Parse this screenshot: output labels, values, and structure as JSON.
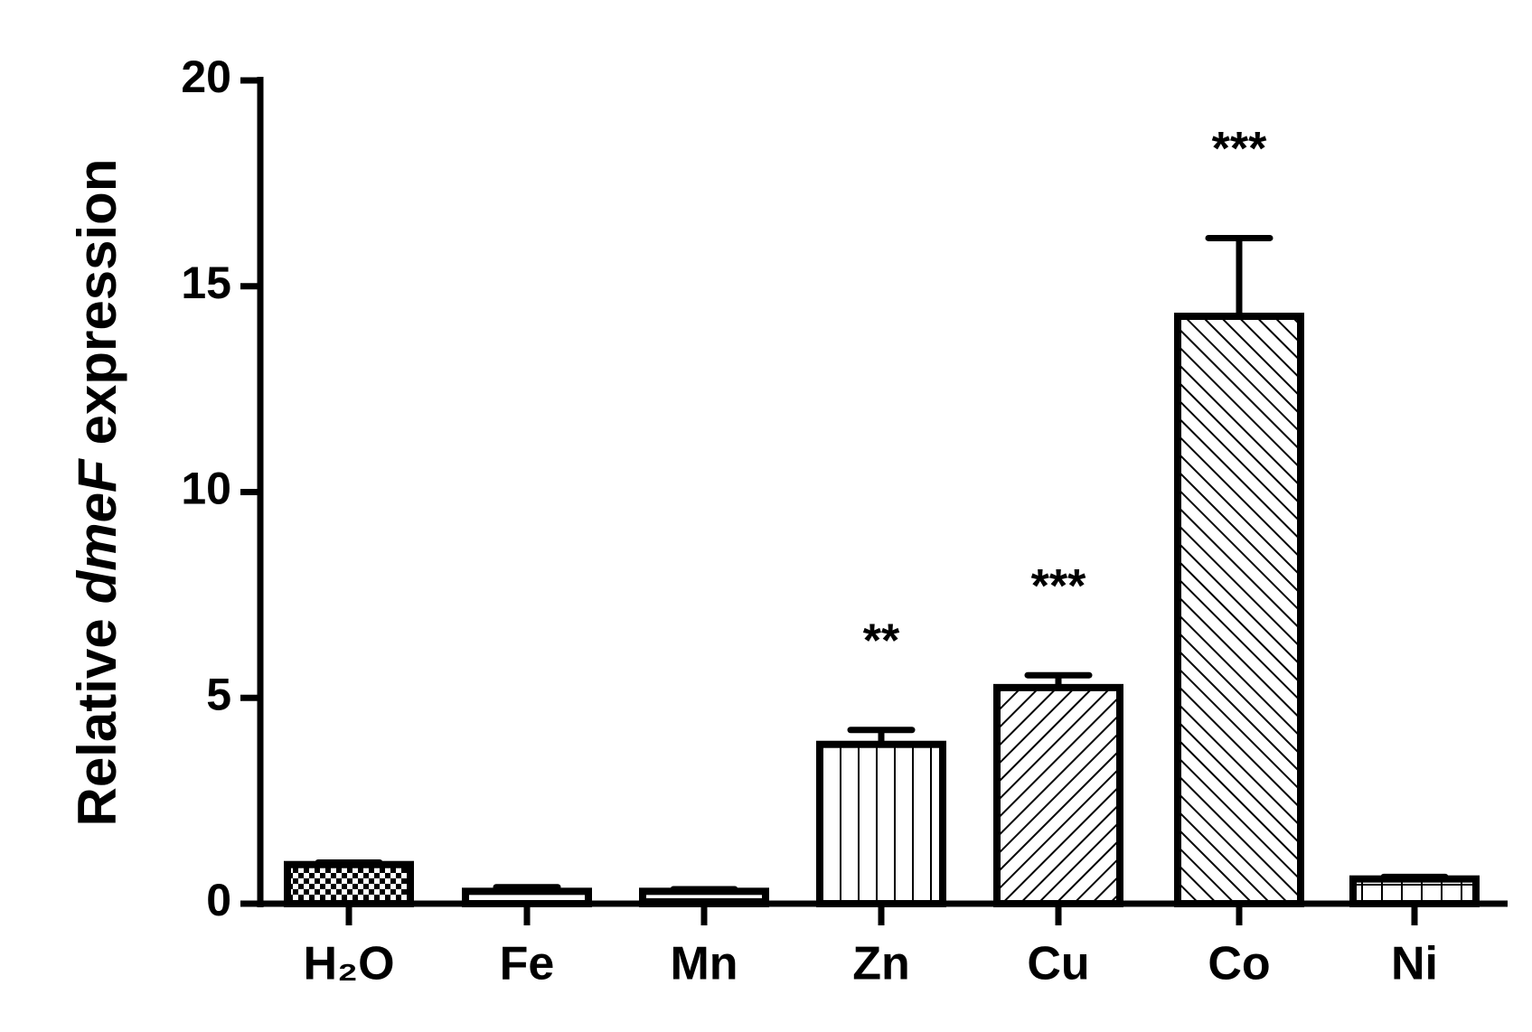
{
  "chart_data": {
    "type": "bar",
    "y_label_parts": [
      "Relative",
      "dmeF",
      "expression"
    ],
    "y_label_italic": [
      false,
      true,
      false
    ],
    "categories": [
      "H₂O",
      "Fe",
      "Mn",
      "Zn",
      "Cu",
      "Co",
      "Ni"
    ],
    "values": [
      0.95,
      0.3,
      0.3,
      3.87,
      5.25,
      14.27,
      0.6
    ],
    "errors": [
      0.05,
      0.1,
      0.05,
      0.35,
      0.3,
      1.9,
      0.05
    ],
    "significance": [
      null,
      null,
      null,
      "**",
      "***",
      "***",
      null
    ],
    "patterns": [
      "checker",
      "empty",
      "hlines",
      "vlines",
      "diag-up",
      "diag-down",
      "grid"
    ],
    "color": "#000000",
    "ylim": [
      0,
      20
    ],
    "yticks": [
      0,
      5,
      10,
      15,
      20
    ],
    "grid": false
  }
}
